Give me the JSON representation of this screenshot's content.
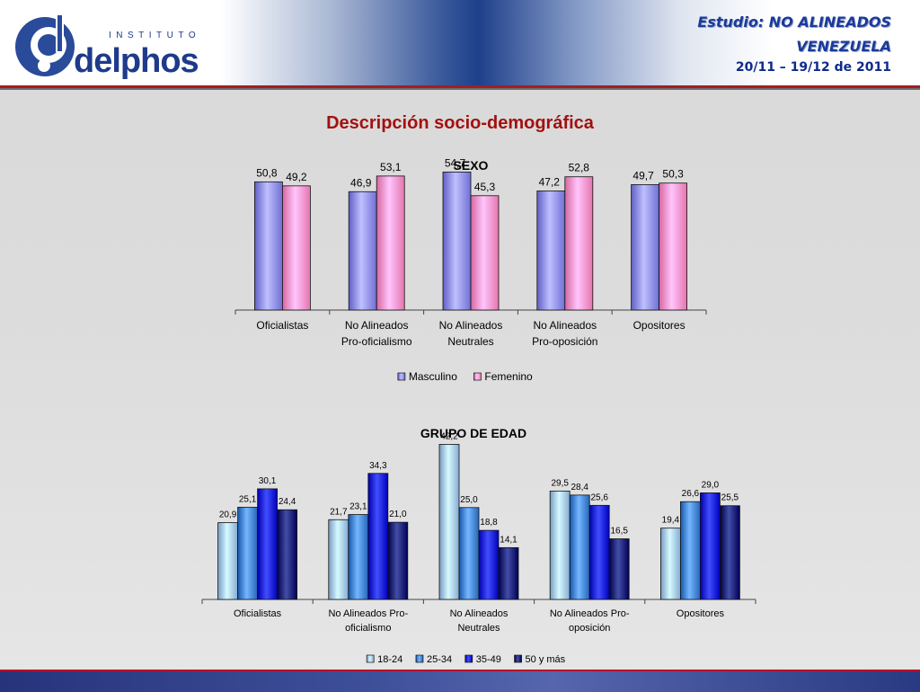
{
  "header": {
    "logo_top": "INSTITUTO",
    "logo_main": "delphos",
    "study_prefix": "Estudio:",
    "study_name": "NO ALINEADOS",
    "country": "VENEZUELA",
    "dates": "20/11 – 19/12 de 2011"
  },
  "page_title": "Descripción socio-demográfica",
  "colors": {
    "masculino": "#8888ee",
    "femenino": "#ff8ec6",
    "age_18_24": "#9fc3ea",
    "age_25_34": "#3e7fd1",
    "age_35_49": "#0a16d4",
    "age_50_plus": "#0c1770"
  },
  "chart_data": [
    {
      "type": "bar",
      "title": "SEXO",
      "categories": [
        [
          "Oficialistas"
        ],
        [
          "No Alineados",
          "Pro-oficialismo"
        ],
        [
          "No Alineados",
          "Neutrales"
        ],
        [
          "No Alineados",
          "Pro-oposición"
        ],
        [
          "Opositores"
        ]
      ],
      "series": [
        {
          "name": "Masculino",
          "values": [
            50.8,
            46.9,
            54.7,
            47.2,
            49.7
          ],
          "labels": [
            "50,8",
            "46,9",
            "54,7",
            "47,2",
            "49,7"
          ]
        },
        {
          "name": "Femenino",
          "values": [
            49.2,
            53.1,
            45.3,
            52.8,
            50.3
          ],
          "labels": [
            "49,2",
            "53,1",
            "45,3",
            "52,8",
            "50,3"
          ]
        }
      ],
      "ylim": [
        0,
        60
      ],
      "grid": false,
      "legend": "bottom"
    },
    {
      "type": "bar",
      "title": "GRUPO DE EDAD",
      "categories": [
        [
          "Oficialistas"
        ],
        [
          "No Alineados    Pro-",
          "oficialismo"
        ],
        [
          "No Alineados",
          "Neutrales"
        ],
        [
          "No Alineados    Pro-",
          "oposición"
        ],
        [
          "Opositores"
        ]
      ],
      "series": [
        {
          "name": "18-24",
          "values": [
            20.9,
            21.7,
            42.2,
            29.5,
            19.4
          ],
          "labels": [
            "20,9",
            "21,7",
            "42,2",
            "29,5",
            "19,4"
          ]
        },
        {
          "name": "25-34",
          "values": [
            25.1,
            23.1,
            25.0,
            28.4,
            26.6
          ],
          "labels": [
            "25,1",
            "23,1",
            "25,0",
            "28,4",
            "26,6"
          ]
        },
        {
          "name": "35-49",
          "values": [
            30.1,
            34.3,
            18.8,
            25.6,
            29.0
          ],
          "labels": [
            "30,1",
            "34,3",
            "18,8",
            "25,6",
            "29,0"
          ]
        },
        {
          "name": "50 y más",
          "values": [
            24.4,
            21.0,
            14.1,
            16.5,
            25.5
          ],
          "labels": [
            "24,4",
            "21,0",
            "14,1",
            "16,5",
            "25,5"
          ]
        }
      ],
      "ylim": [
        0,
        45
      ],
      "grid": false,
      "legend": "bottom"
    }
  ]
}
